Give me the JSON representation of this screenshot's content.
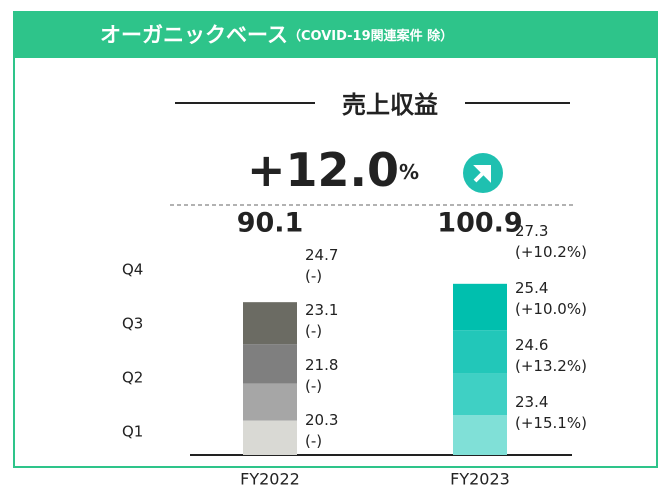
{
  "chart_data": {
    "type": "stacked_bar",
    "title": "オーガニックベース",
    "subtitle": "（COVID-19関連案件 除）",
    "heading": "売上収益",
    "change_label": "+12.0",
    "change_unit": "%",
    "categories": [
      "FY2022",
      "FY2023"
    ],
    "totals": [
      90.1,
      100.9
    ],
    "series": [
      {
        "name": "Q1",
        "colors": [
          "#d9d9d4",
          "#80e0d7"
        ],
        "values": [
          20.3,
          23.4
        ],
        "growth_labels": [
          "(-)",
          "(+15.1%)"
        ]
      },
      {
        "name": "Q2",
        "colors": [
          "#a6a6a6",
          "#3fd0c4"
        ],
        "values": [
          21.8,
          24.6
        ],
        "growth_labels": [
          "(-)",
          "(+13.2%)"
        ]
      },
      {
        "name": "Q3",
        "colors": [
          "#7f7f7f",
          "#22c7b9"
        ],
        "values": [
          23.1,
          25.4
        ],
        "growth_labels": [
          "(-)",
          "(+10.0%)"
        ]
      },
      {
        "name": "Q4",
        "colors": [
          "#6b6b63",
          "#00bfae"
        ],
        "values": [
          24.7,
          27.3
        ],
        "growth_labels": [
          "(-)",
          "(+10.2%)"
        ]
      }
    ],
    "ylim": [
      0,
      110
    ]
  }
}
